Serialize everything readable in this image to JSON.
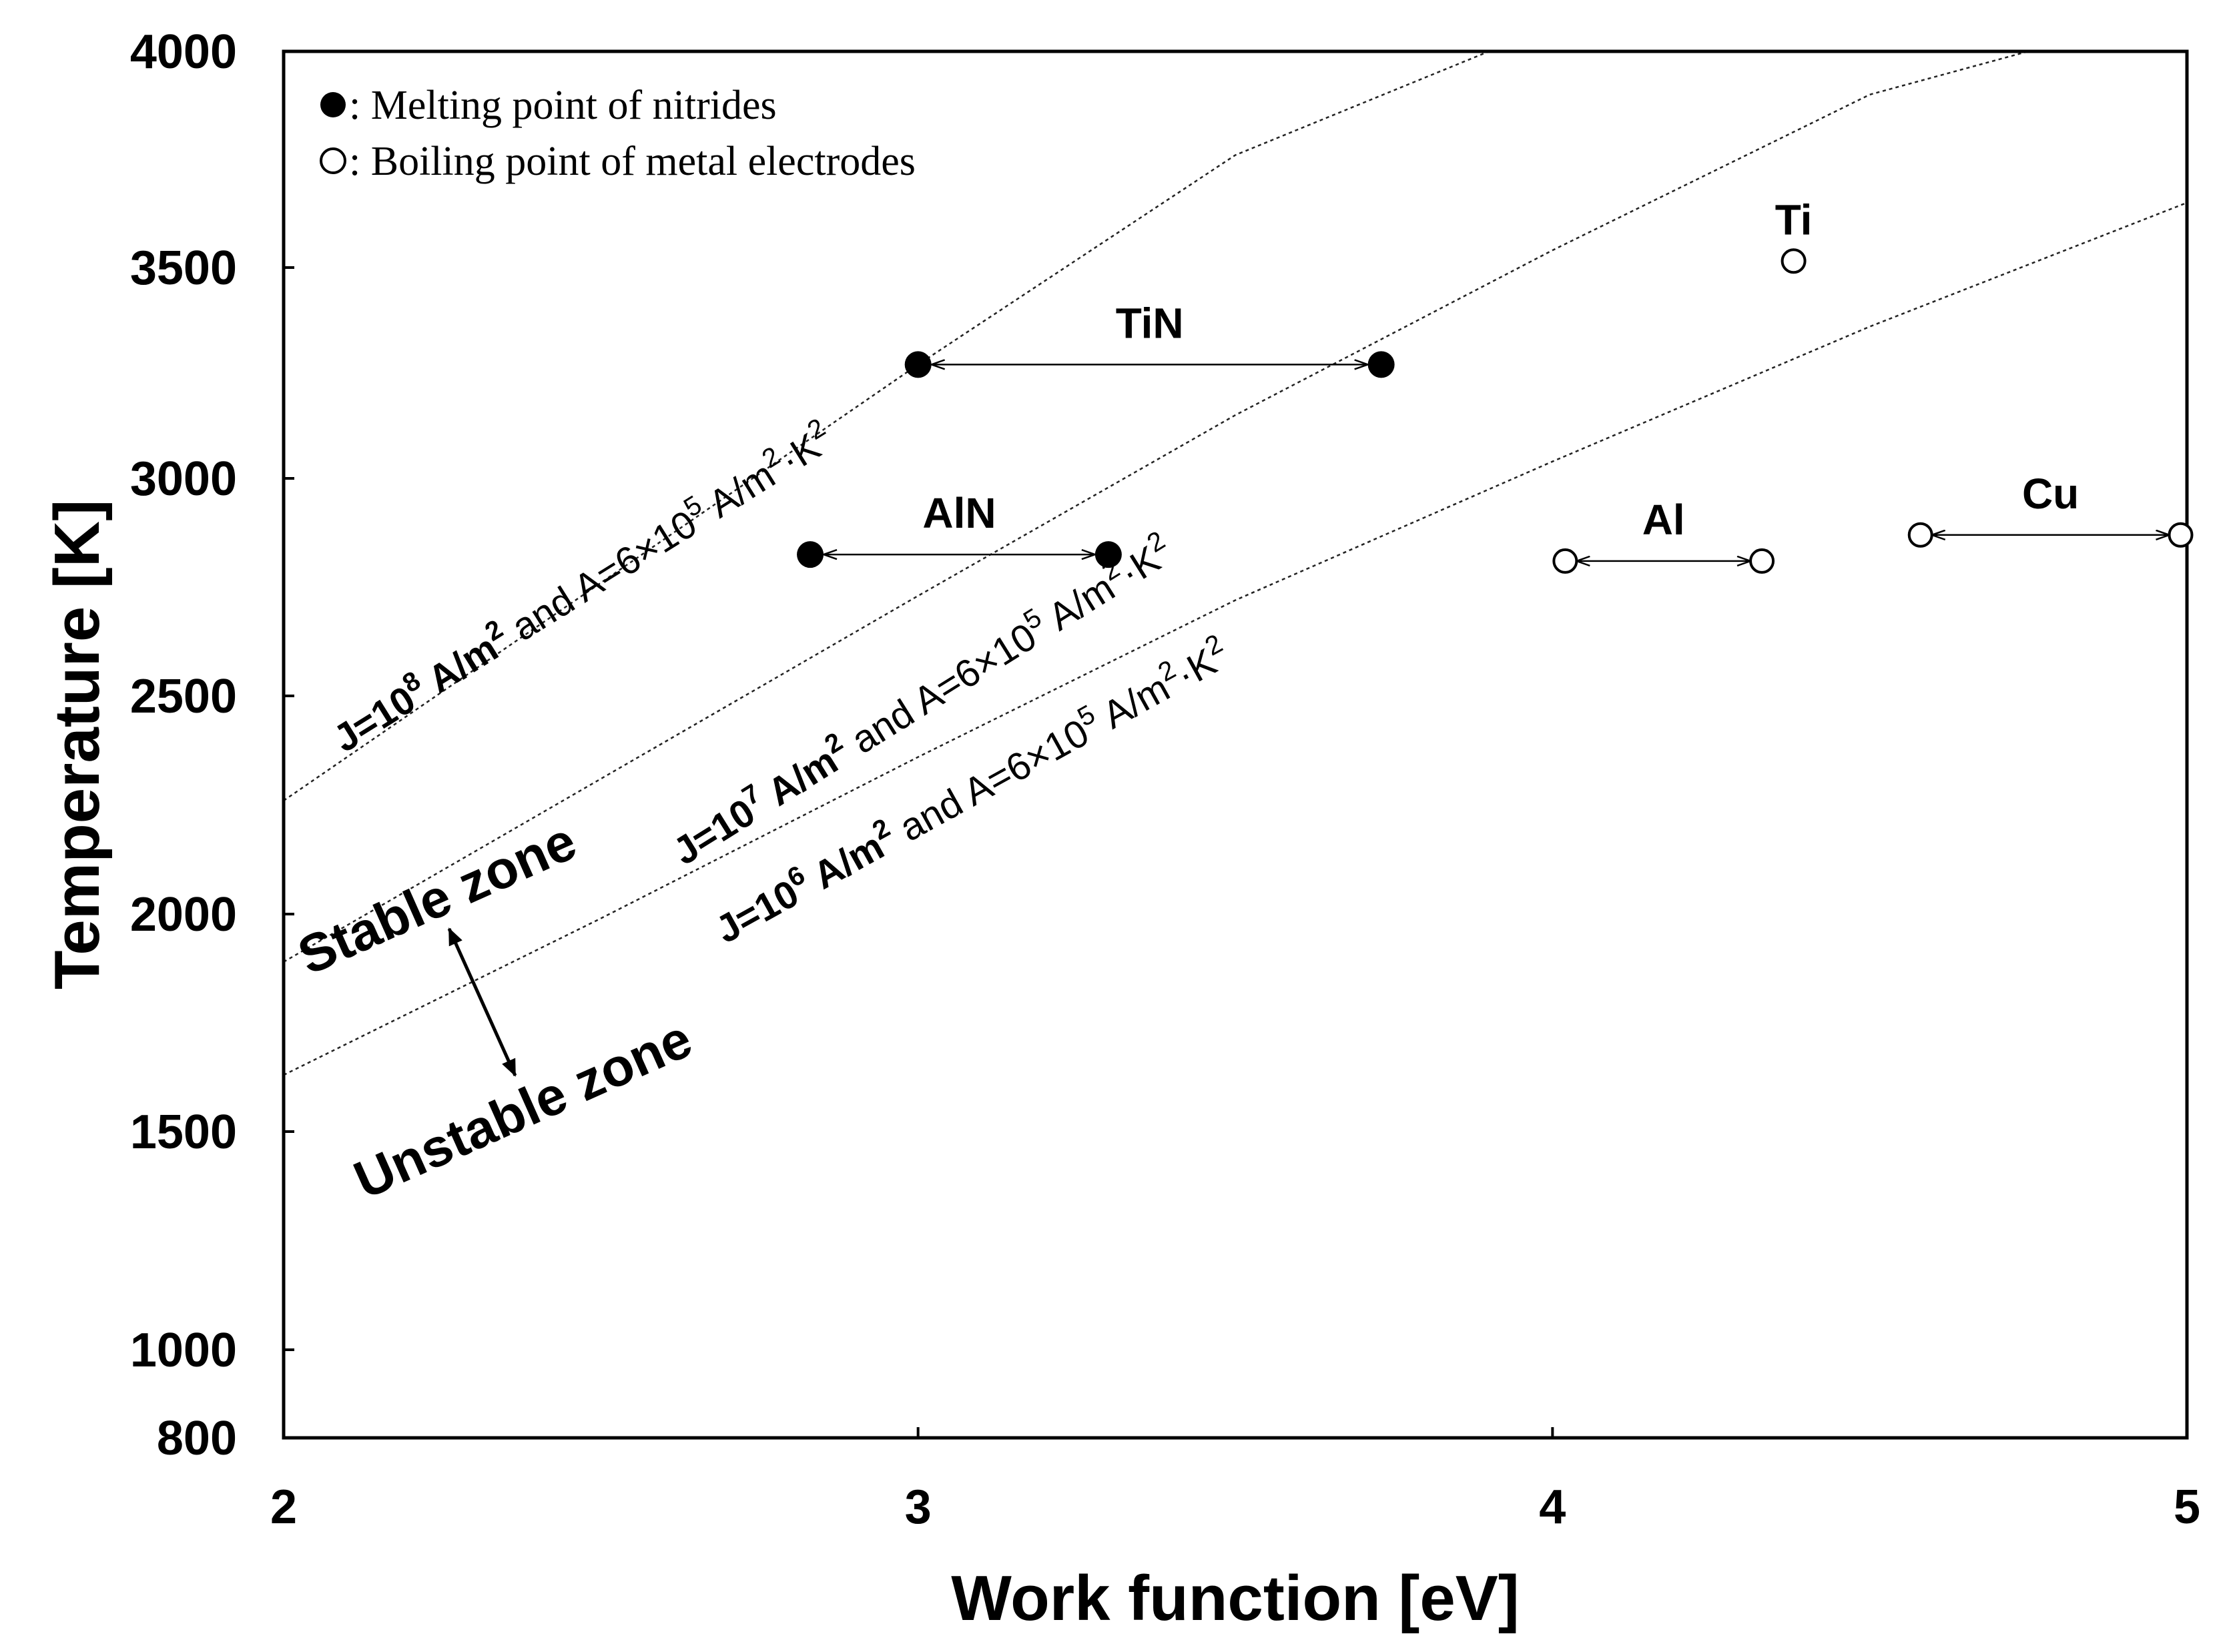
{
  "chart_data": {
    "type": "scatter",
    "xlabel": "Work function [eV]",
    "ylabel": "Temperature [K]",
    "xlim": [
      2,
      5
    ],
    "ylim": [
      800,
      4000
    ],
    "x_ticks": [
      "2",
      "3",
      "4",
      "5"
    ],
    "y_ticks": [
      "800",
      "1000",
      "1500",
      "2000",
      "2500",
      "3000",
      "3500",
      "4000"
    ],
    "grid": false,
    "legend": {
      "placement": "top-left",
      "entries": [
        {
          "marker": "filled-circle",
          "symbol": "●",
          "label": ": Melting point of nitrides"
        },
        {
          "marker": "open-circle",
          "symbol": "○",
          "label": ": Boiling point of metal electrodes"
        }
      ]
    },
    "ranges": [
      {
        "name": "TiN",
        "marker": "filled",
        "x": [
          3.0,
          3.73
        ],
        "temperature": 3270
      },
      {
        "name": "AlN",
        "marker": "filled",
        "x": [
          2.83,
          3.3
        ],
        "temperature": 2825
      },
      {
        "name": "Al",
        "marker": "open",
        "x": [
          4.02,
          4.33
        ],
        "temperature": 2810
      },
      {
        "name": "Cu",
        "marker": "open",
        "x": [
          4.58,
          4.99
        ],
        "temperature": 2870
      }
    ],
    "points": [
      {
        "name": "Ti",
        "marker": "open",
        "x": 4.38,
        "temperature": 3515
      }
    ],
    "curves": [
      {
        "J": "J=10",
        "exp": "8",
        "A": "A=6×10",
        "Aexp": "5",
        "points": [
          [
            2.0,
            2260
          ],
          [
            2.5,
            2760
          ],
          [
            3.0,
            3270
          ],
          [
            3.5,
            3760
          ],
          [
            3.9,
            4000
          ]
        ]
      },
      {
        "J": "J=10",
        "exp": "7",
        "A": "A=6×10",
        "Aexp": "5",
        "points": [
          [
            2.0,
            1890
          ],
          [
            2.5,
            2310
          ],
          [
            3.0,
            2730
          ],
          [
            3.5,
            3150
          ],
          [
            4.0,
            3540
          ],
          [
            4.5,
            3900
          ],
          [
            4.75,
            4000
          ]
        ]
      },
      {
        "J": "J=10",
        "exp": "6",
        "A": "A=6×10",
        "Aexp": "5",
        "points": [
          [
            2.0,
            1630
          ],
          [
            2.5,
            1990
          ],
          [
            3.0,
            2360
          ],
          [
            3.5,
            2720
          ],
          [
            4.0,
            3040
          ],
          [
            4.5,
            3360
          ],
          [
            5.0,
            3650
          ]
        ]
      }
    ],
    "curve_label_parts": {
      "Junit": "A/m",
      "and": "and",
      "Aunit": "A/m",
      "Kunit": "·K"
    },
    "zones": {
      "stable": "Stable zone",
      "unstable": "Unstable zone"
    }
  }
}
